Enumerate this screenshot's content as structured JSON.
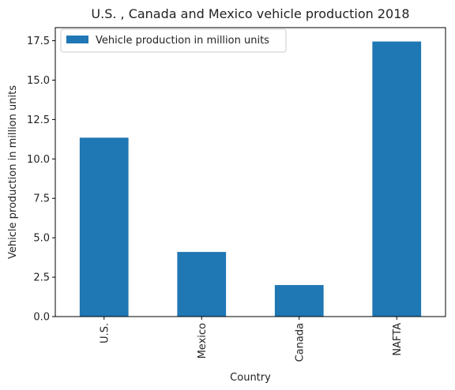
{
  "chart_data": {
    "type": "bar",
    "title": "U.S. , Canada and Mexico vehicle production 2018",
    "xlabel": "Country",
    "ylabel": "Vehicle production in million units",
    "categories": [
      "U.S.",
      "Mexico",
      "Canada",
      "NAFTA"
    ],
    "series": [
      {
        "name": "Vehicle production in million units",
        "values": [
          11.35,
          4.1,
          2.0,
          17.45
        ],
        "color": "#1f77b4"
      }
    ],
    "ylim": [
      0,
      18.33
    ],
    "yticks": [
      "0.0",
      "2.5",
      "5.0",
      "7.5",
      "10.0",
      "12.5",
      "15.0",
      "17.5"
    ],
    "ytick_values": [
      0,
      2.5,
      5,
      7.5,
      10,
      12.5,
      15,
      17.5
    ],
    "grid": false,
    "legend_position": "top-left"
  }
}
